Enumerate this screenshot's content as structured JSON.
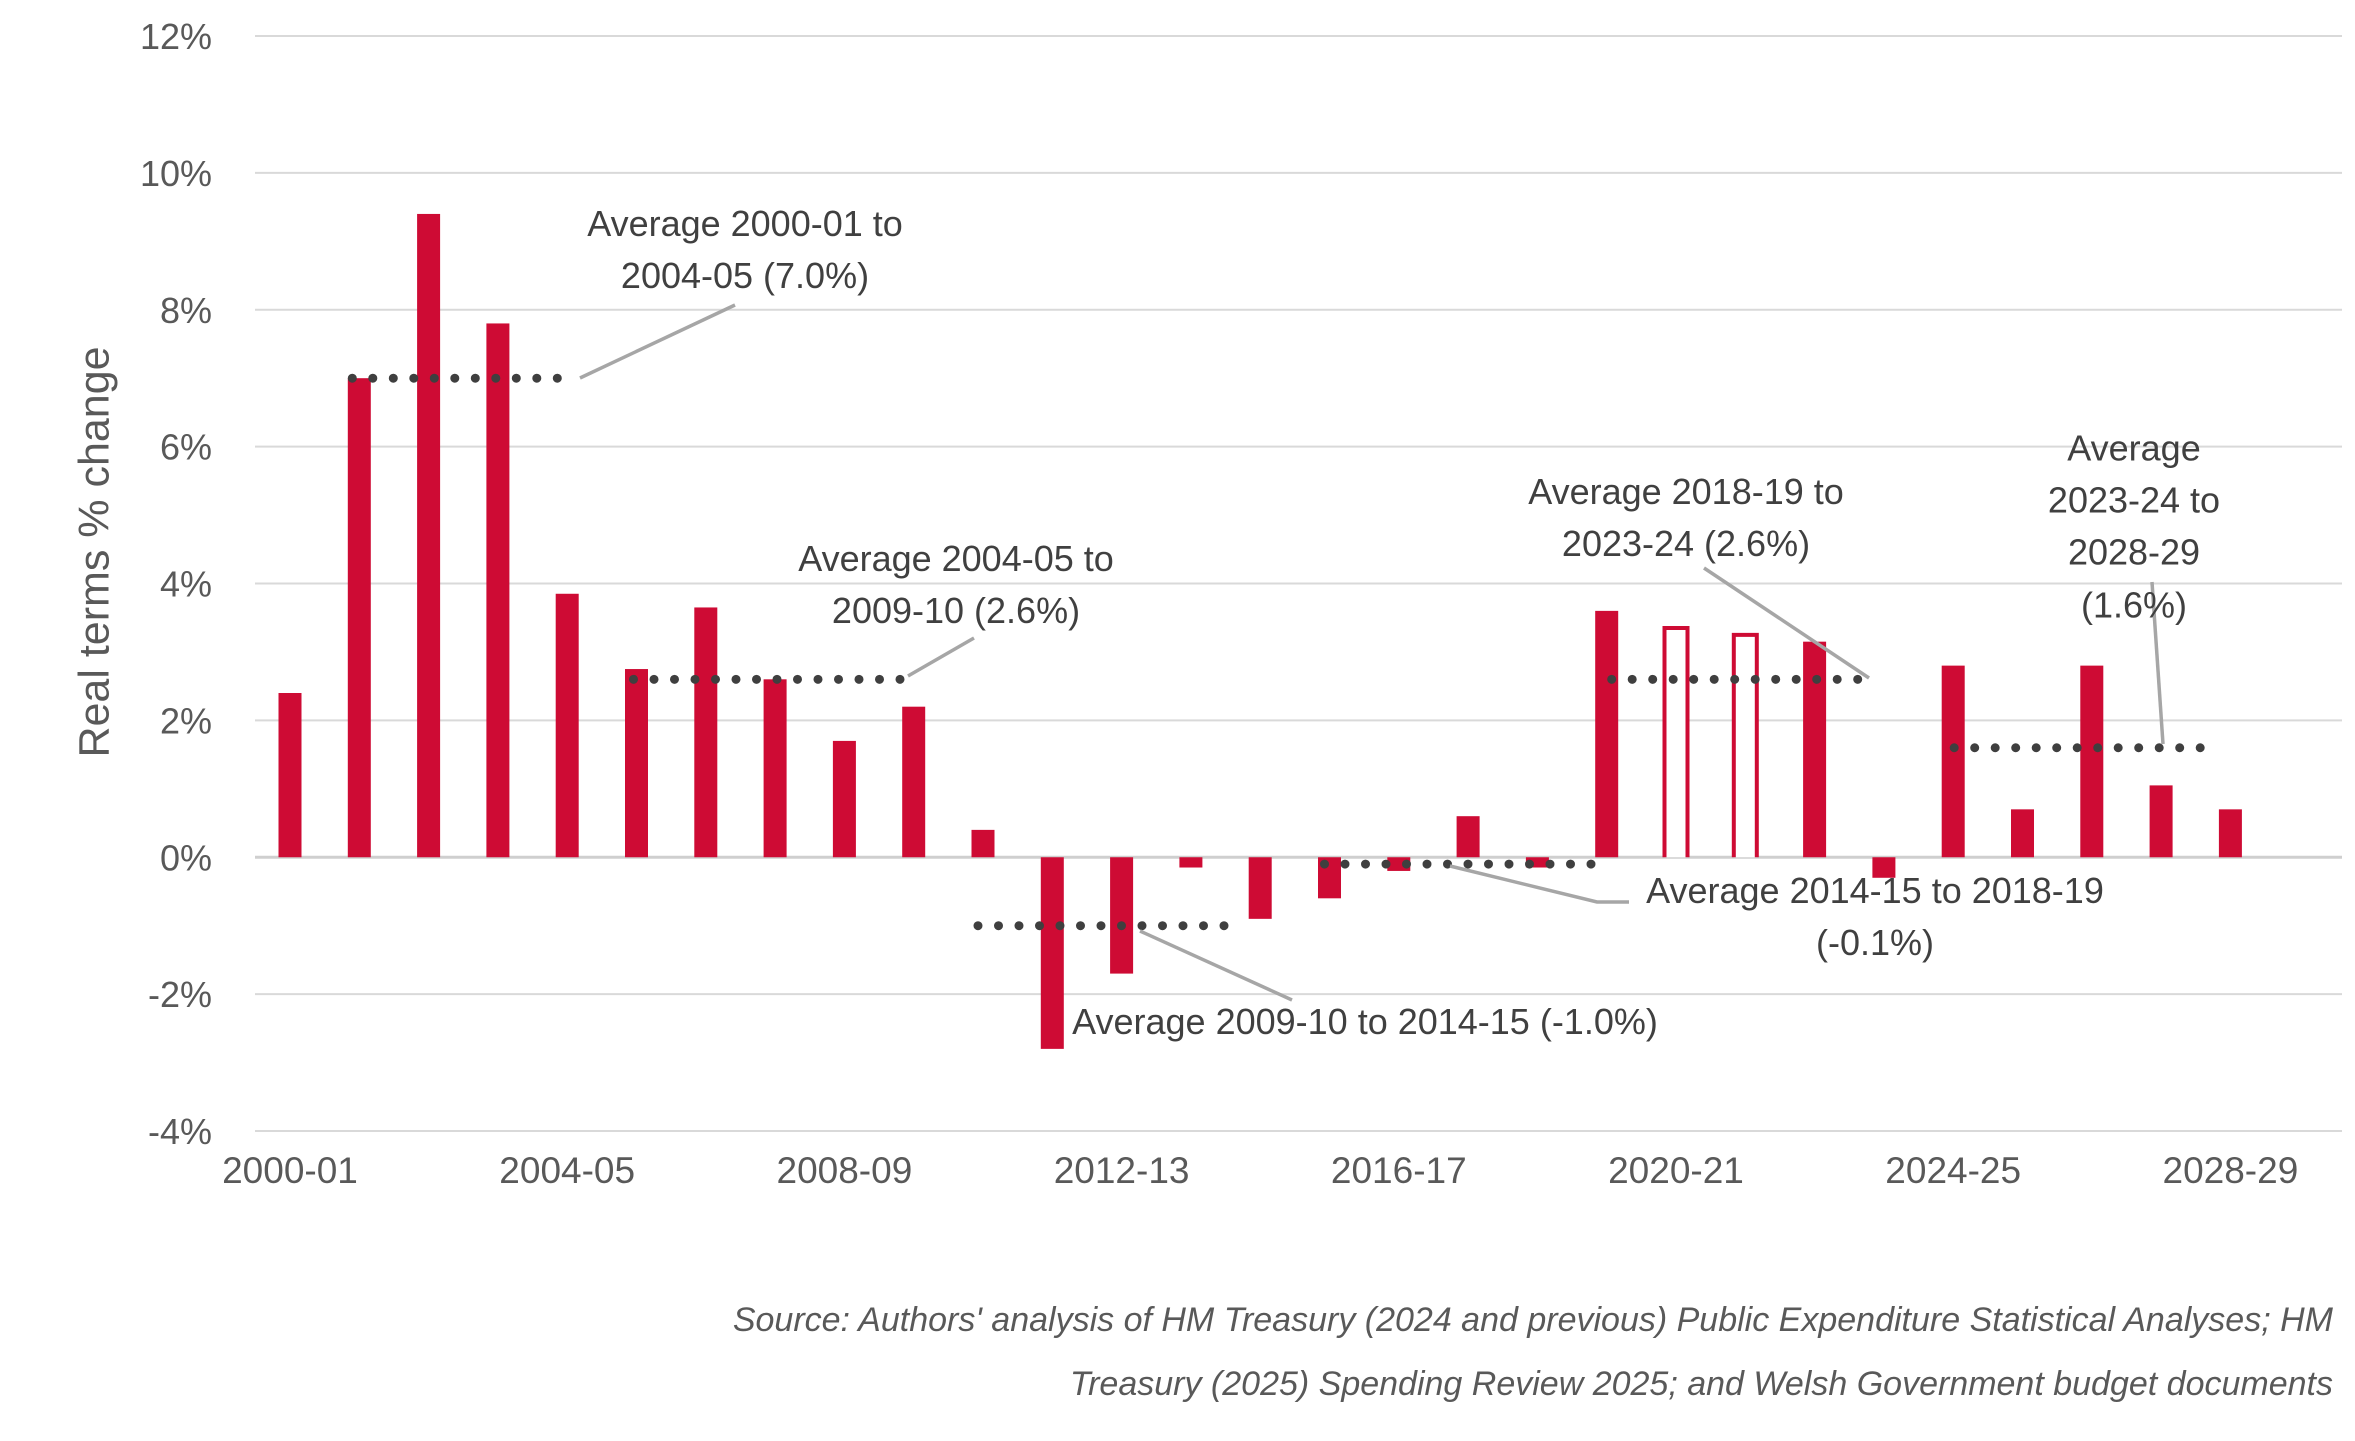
{
  "chart_data": {
    "type": "bar",
    "title": "",
    "xlabel": "",
    "ylabel": "Real terms % change",
    "ylim": [
      -4,
      12
    ],
    "grid": true,
    "y_tick_values": [
      12,
      10,
      8,
      6,
      4,
      2,
      0,
      -2,
      -4
    ],
    "y_tick_labels": [
      "12%",
      "10%",
      "8%",
      "6%",
      "4%",
      "2%",
      "0%",
      "-2%",
      "-4%"
    ],
    "x_tick_labels": [
      "2000-01",
      "2004-05",
      "2008-09",
      "2012-13",
      "2016-17",
      "2020-21",
      "2024-25",
      "2028-29"
    ],
    "categories": [
      "2000-01",
      "2001-02",
      "2002-03",
      "2003-04",
      "2004-05",
      "2005-06",
      "2006-07",
      "2007-08",
      "2008-09",
      "2009-10",
      "2010-11",
      "2011-12",
      "2012-13",
      "2013-14",
      "2014-15",
      "2015-16",
      "2016-17",
      "2017-18",
      "2018-19",
      "2019-20",
      "2020-21",
      "2021-22",
      "2022-23",
      "2023-24",
      "2024-25",
      "2025-26",
      "2026-27",
      "2027-28",
      "2028-29"
    ],
    "values": [
      2.4,
      7.0,
      9.4,
      7.8,
      3.85,
      2.75,
      3.65,
      2.6,
      1.7,
      2.2,
      0.4,
      -2.8,
      -1.7,
      -0.15,
      -0.9,
      -0.6,
      -0.2,
      0.6,
      -0.15,
      3.6,
      3.35,
      3.25,
      3.15,
      -0.3,
      2.8,
      0.7,
      2.8,
      1.05,
      0.7
    ],
    "hollow_categories": [
      "2020-21",
      "2021-22"
    ],
    "bar_color": "#ce0b34",
    "dotted_line_color": "#3f3f3f",
    "leader_line_color": "#a6a6a6",
    "gridline_color": "#d9d9d9",
    "axis_text_color": "#595959",
    "annotation_text_color": "#404040",
    "averages": [
      {
        "label": "Average 2000-01 to\n2004-05 (7.0%)",
        "value": 7.0,
        "period_start": "2000-01",
        "period_end": "2004-05"
      },
      {
        "label": "Average 2004-05 to\n2009-10 (2.6%)",
        "value": 2.6,
        "period_start": "2004-05",
        "period_end": "2009-10"
      },
      {
        "label": "Average 2009-10 to 2014-15 (-1.0%)",
        "value": -1.0,
        "period_start": "2009-10",
        "period_end": "2014-15"
      },
      {
        "label": "Average 2014-15 to 2018-19 (-0.1%)",
        "value": -0.1,
        "period_start": "2014-15",
        "period_end": "2018-19"
      },
      {
        "label": "Average 2018-19 to\n2023-24 (2.6%)",
        "value": 2.6,
        "period_start": "2018-19",
        "period_end": "2023-24"
      },
      {
        "label": "Average 2023-24 to\n2028-29 (1.6%)",
        "value": 1.6,
        "period_start": "2023-24",
        "period_end": "2028-29"
      }
    ],
    "source_line1": "Source: Authors' analysis of HM Treasury (2024 and previous) Public Expenditure Statistical Analyses; HM",
    "source_line2": "Treasury (2025) Spending Review 2025; and Welsh Government budget documents"
  }
}
